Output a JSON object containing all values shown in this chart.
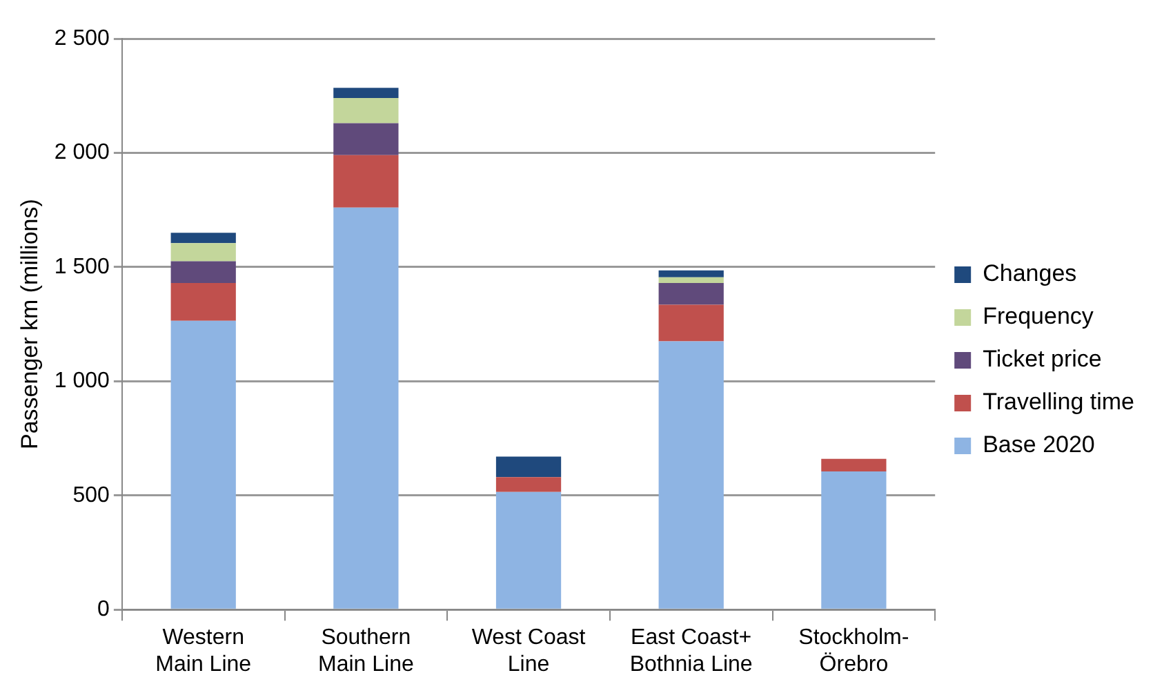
{
  "chart_data": {
    "type": "bar",
    "stacked": true,
    "ylabel": "Passenger km (millions)",
    "categories": [
      "Western Main Line",
      "Southern Main Line",
      "West Coast Line",
      "East Coast+ Bothnia Line",
      "Stockholm-Örebro"
    ],
    "series": [
      {
        "name": "Base 2020",
        "color": "#8eb4e3",
        "values": [
          1265,
          1760,
          515,
          1175,
          605
        ]
      },
      {
        "name": "Travelling time",
        "color": "#c0504d",
        "values": [
          165,
          230,
          65,
          160,
          55
        ]
      },
      {
        "name": "Ticket price",
        "color": "#604a7b",
        "values": [
          95,
          140,
          0,
          95,
          0
        ]
      },
      {
        "name": "Frequency",
        "color": "#c3d69b",
        "values": [
          80,
          110,
          0,
          25,
          0
        ]
      },
      {
        "name": "Changes",
        "color": "#1f497d",
        "values": [
          45,
          45,
          90,
          30,
          0
        ]
      }
    ],
    "ylim": [
      0,
      2500
    ],
    "yticks": [
      0,
      {
        "value": 500,
        "label": "500"
      },
      {
        "value": 1000,
        "label": "1 000"
      },
      {
        "value": 1500,
        "label": "1 500"
      },
      {
        "value": 2000,
        "label": "2 000"
      },
      {
        "value": 2500,
        "label": "2 500"
      }
    ],
    "grid": "y",
    "legend": "right"
  }
}
